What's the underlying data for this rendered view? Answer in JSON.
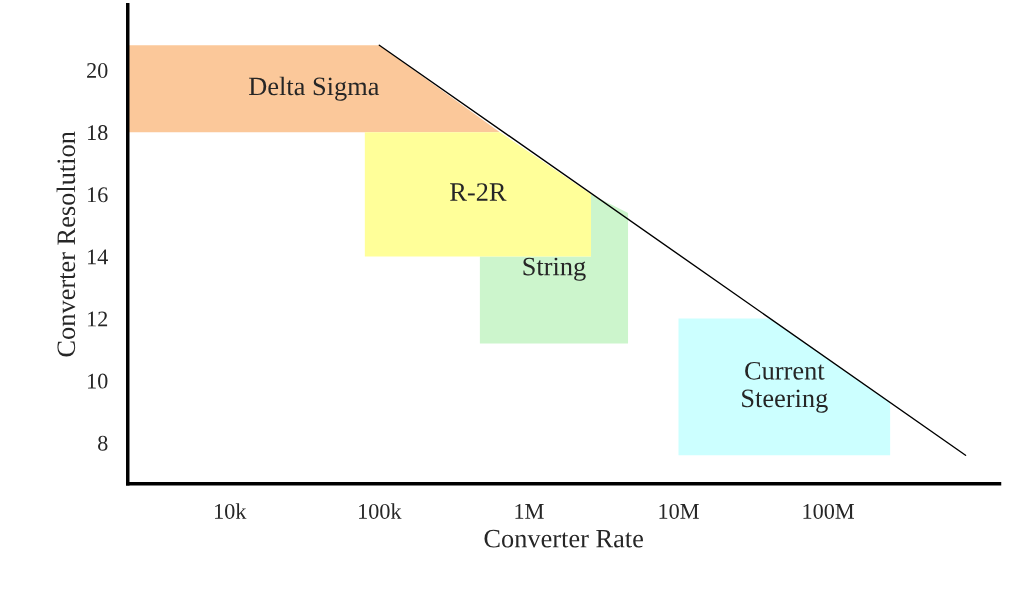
{
  "chart_data": {
    "type": "area",
    "xlabel": "Converter Rate",
    "ylabel": "Converter Resolution",
    "log": "x",
    "xlim": [
      2080,
      1400000000.0
    ],
    "ylim": [
      6.68,
      22.1
    ],
    "xticks": [
      {
        "value": 10000,
        "label": "10k"
      },
      {
        "value": 100000,
        "label": "100k"
      },
      {
        "value": 1000000,
        "label": "1M"
      },
      {
        "value": 10000000,
        "label": "10M"
      },
      {
        "value": 100000000,
        "label": "100M"
      }
    ],
    "yticks": [
      8,
      10,
      12,
      14,
      16,
      18,
      20
    ],
    "series": [
      {
        "name": "Delta Sigma",
        "color": "#fbc89a",
        "x": [
          2080,
          2080,
          100000,
          640000
        ],
        "values": [
          18,
          20.8,
          20.8,
          18
        ]
      },
      {
        "name": "String",
        "color": "#ccf5cc",
        "x": [
          470000,
          470000,
          2600000,
          2600000,
          4600000,
          4600000
        ],
        "values": [
          11.2,
          14,
          14,
          16,
          15.4,
          11.2
        ]
      },
      {
        "name": "R-2R",
        "color": "#ffff99",
        "x": [
          80000,
          80000,
          640000,
          2600000,
          2600000
        ],
        "values": [
          14,
          18,
          18,
          16,
          14
        ]
      },
      {
        "name": "Current\nSteering",
        "color": "#ccffff",
        "x": [
          10000000,
          10000000,
          41000000,
          260000000,
          260000000
        ],
        "values": [
          7.6,
          12,
          12,
          9.3,
          7.6
        ]
      },
      {
        "type": "line",
        "color": "#000000",
        "x": [
          100000,
          830000000
        ],
        "values": [
          20.8,
          7.6
        ]
      }
    ]
  }
}
